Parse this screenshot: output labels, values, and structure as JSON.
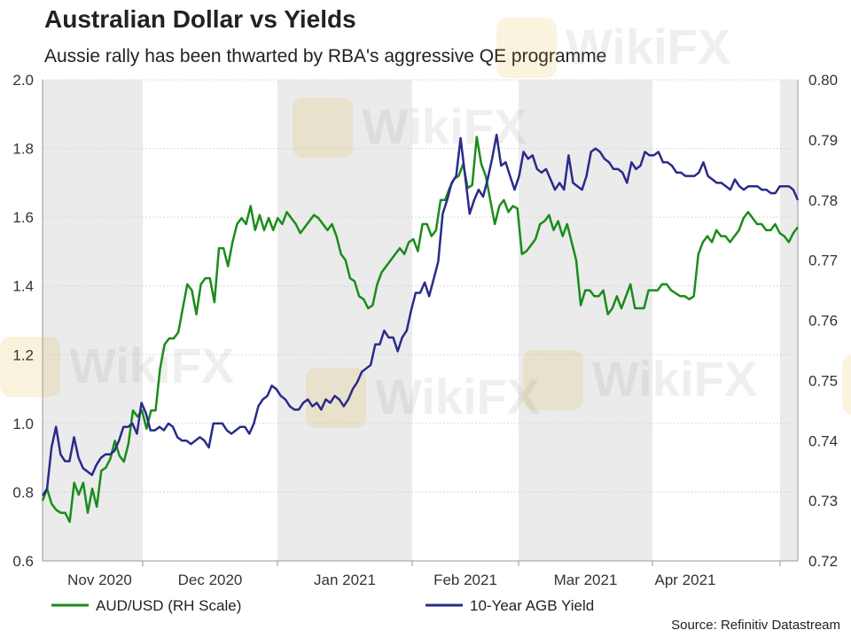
{
  "title": "Australian Dollar vs Yields",
  "subtitle": "Aussie rally has been thwarted by RBA's aggressive QE programme",
  "source": "Source: Refinitiv Datastream",
  "watermark": "WikiFX",
  "chart_data": {
    "type": "line",
    "x_labels": [
      "Nov 2020",
      "Dec 2020",
      "Jan 2021",
      "Feb 2021",
      "Mar 2021",
      "Apr 2021"
    ],
    "left_axis": {
      "ticks": [
        "0.6",
        "0.8",
        "1.0",
        "1.2",
        "1.4",
        "1.6",
        "1.8",
        "2.0"
      ],
      "ylim": [
        0.6,
        2.0
      ]
    },
    "right_axis": {
      "ticks": [
        "0.72",
        "0.73",
        "0.74",
        "0.75",
        "0.76",
        "0.77",
        "0.78",
        "0.79",
        "0.80"
      ],
      "ylim": [
        0.72,
        0.8
      ]
    },
    "grid": true,
    "shaded_months": [
      "Nov 2020",
      "Jan 2021",
      "Mar 2021"
    ],
    "legend_position": "bottom",
    "series": [
      {
        "name": "AUD/USD (RH Scale)",
        "axis": "right",
        "color": "#1a8c1a",
        "values": [
          0.73,
          0.732,
          0.7295,
          0.7285,
          0.728,
          0.728,
          0.7265,
          0.733,
          0.731,
          0.733,
          0.728,
          0.732,
          0.729,
          0.735,
          0.7355,
          0.737,
          0.74,
          0.7375,
          0.7365,
          0.7395,
          0.745,
          0.744,
          0.745,
          0.742,
          0.745,
          0.745,
          0.752,
          0.756,
          0.757,
          0.757,
          0.758,
          0.762,
          0.766,
          0.765,
          0.761,
          0.766,
          0.767,
          0.767,
          0.763,
          0.772,
          0.772,
          0.769,
          0.773,
          0.776,
          0.777,
          0.776,
          0.779,
          0.775,
          0.7775,
          0.775,
          0.777,
          0.775,
          0.777,
          0.776,
          0.778,
          0.777,
          0.776,
          0.7745,
          0.7755,
          0.7765,
          0.7775,
          0.777,
          0.776,
          0.775,
          0.776,
          0.774,
          0.771,
          0.77,
          0.767,
          0.7665,
          0.764,
          0.7635,
          0.762,
          0.7625,
          0.766,
          0.768,
          0.769,
          0.77,
          0.771,
          0.772,
          0.771,
          0.773,
          0.7735,
          0.7715,
          0.776,
          0.776,
          0.774,
          0.775,
          0.78,
          0.78,
          0.782,
          0.7835,
          0.784,
          0.786,
          0.782,
          0.7825,
          0.7905,
          0.786,
          0.784,
          0.78,
          0.776,
          0.779,
          0.78,
          0.778,
          0.779,
          0.7786,
          0.771,
          0.7715,
          0.7725,
          0.7735,
          0.776,
          0.7765,
          0.7775,
          0.775,
          0.7765,
          0.774,
          0.776,
          0.773,
          0.77,
          0.7625,
          0.765,
          0.765,
          0.764,
          0.764,
          0.765,
          0.761,
          0.762,
          0.764,
          0.762,
          0.764,
          0.766,
          0.762,
          0.762,
          0.762,
          0.765,
          0.765,
          0.765,
          0.766,
          0.766,
          0.765,
          0.7645,
          0.764,
          0.764,
          0.7635,
          0.764,
          0.771,
          0.773,
          0.774,
          0.773,
          0.775,
          0.774,
          0.774,
          0.773,
          0.774,
          0.775,
          0.777,
          0.778,
          0.777,
          0.776,
          0.776,
          0.775,
          0.775,
          0.776,
          0.7745,
          0.774,
          0.773,
          0.7745,
          0.7755
        ]
      },
      {
        "name": "10-Year AGB Yield",
        "axis": "left",
        "color": "#2a2a8c",
        "values": [
          0.79,
          0.81,
          0.93,
          0.99,
          0.91,
          0.89,
          0.89,
          0.96,
          0.9,
          0.87,
          0.86,
          0.85,
          0.88,
          0.9,
          0.91,
          0.91,
          0.92,
          0.95,
          0.99,
          0.99,
          1.0,
          0.97,
          1.06,
          1.03,
          0.98,
          0.98,
          0.99,
          0.98,
          1.0,
          0.99,
          0.96,
          0.95,
          0.95,
          0.94,
          0.95,
          0.96,
          0.95,
          0.93,
          1.0,
          1.0,
          1.0,
          0.98,
          0.97,
          0.98,
          0.99,
          0.99,
          0.97,
          1.0,
          1.05,
          1.07,
          1.08,
          1.11,
          1.1,
          1.08,
          1.07,
          1.05,
          1.04,
          1.04,
          1.06,
          1.07,
          1.05,
          1.06,
          1.04,
          1.07,
          1.06,
          1.08,
          1.07,
          1.05,
          1.07,
          1.1,
          1.12,
          1.15,
          1.16,
          1.17,
          1.23,
          1.23,
          1.27,
          1.25,
          1.25,
          1.21,
          1.25,
          1.27,
          1.33,
          1.38,
          1.38,
          1.41,
          1.37,
          1.42,
          1.47,
          1.61,
          1.65,
          1.7,
          1.72,
          1.83,
          1.72,
          1.61,
          1.65,
          1.68,
          1.66,
          1.71,
          1.77,
          1.84,
          1.75,
          1.76,
          1.72,
          1.68,
          1.72,
          1.79,
          1.77,
          1.78,
          1.74,
          1.73,
          1.74,
          1.71,
          1.68,
          1.7,
          1.68,
          1.78,
          1.7,
          1.69,
          1.68,
          1.72,
          1.79,
          1.8,
          1.79,
          1.77,
          1.76,
          1.74,
          1.74,
          1.73,
          1.7,
          1.76,
          1.74,
          1.75,
          1.79,
          1.78,
          1.78,
          1.79,
          1.76,
          1.76,
          1.75,
          1.73,
          1.73,
          1.72,
          1.72,
          1.72,
          1.73,
          1.76,
          1.72,
          1.71,
          1.7,
          1.7,
          1.69,
          1.68,
          1.71,
          1.69,
          1.68,
          1.69,
          1.69,
          1.69,
          1.68,
          1.68,
          1.67,
          1.67,
          1.69,
          1.69,
          1.69,
          1.68,
          1.65
        ]
      }
    ]
  }
}
